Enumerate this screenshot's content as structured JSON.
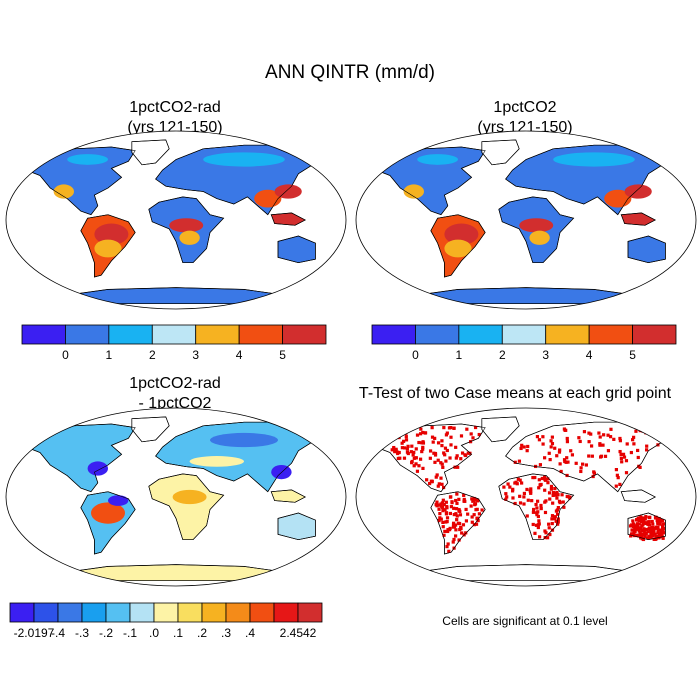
{
  "figure": {
    "title": "ANN QINTR (mm/d)",
    "footnote": "Cells are significant at 0.1 level"
  },
  "chart_data": [
    {
      "type": "heatmap",
      "title": "1pctCO2-rad",
      "subtitle": "(yrs 121-150)",
      "projection": "Robinson world map",
      "colorbar": {
        "levels": [
          0,
          1,
          2,
          3,
          4,
          5
        ],
        "tick_labels": [
          "0",
          "1",
          "2",
          "3",
          "4",
          "5"
        ],
        "colors": [
          "#3b1ff2",
          "#3a78e6",
          "#19b2f2",
          "#bde6f5",
          "#f6b221",
          "#f14f12",
          "#d22e2e"
        ]
      }
    },
    {
      "type": "heatmap",
      "title": "1pctCO2",
      "subtitle": "(yrs 121-150)",
      "projection": "Robinson world map",
      "colorbar": {
        "levels": [
          0,
          1,
          2,
          3,
          4,
          5
        ],
        "tick_labels": [
          "0",
          "1",
          "2",
          "3",
          "4",
          "5"
        ],
        "colors": [
          "#3b1ff2",
          "#3a78e6",
          "#19b2f2",
          "#bde6f5",
          "#f6b221",
          "#f14f12",
          "#d22e2e"
        ]
      }
    },
    {
      "type": "heatmap",
      "title": "1pctCO2-rad",
      "subtitle": "- 1pctCO2",
      "projection": "Robinson world map",
      "colorbar": {
        "min_label": "-2.0197",
        "max_label": "2.4542",
        "tick_labels": [
          "-.4",
          "-.3",
          "-.2",
          "-.1",
          ".0",
          ".1",
          ".2",
          ".3",
          ".4"
        ],
        "colors": [
          "#3b1ff2",
          "#2d52e9",
          "#3a78e6",
          "#199fef",
          "#55c0f2",
          "#b4e2f4",
          "#fdf3a6",
          "#f9de5f",
          "#f6b221",
          "#f48b19",
          "#f14f12",
          "#e61717",
          "#d22e2e"
        ]
      }
    },
    {
      "type": "heatmap",
      "title": "T-Test of two Case means at each grid point",
      "projection": "Robinson world map",
      "significance_color": "#e60000"
    }
  ]
}
